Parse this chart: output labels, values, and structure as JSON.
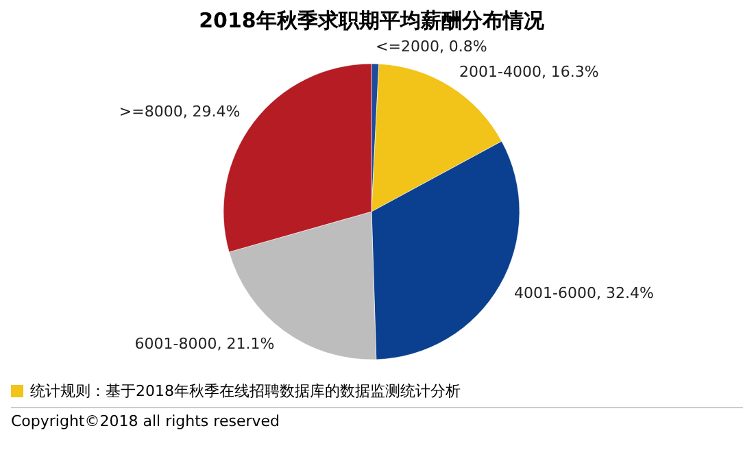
{
  "chart_data": {
    "type": "pie",
    "title": "2018年秋季求职期平均薪酬分布情况",
    "categories": [
      "<=2000",
      "2001-4000",
      "4001-6000",
      "6001-8000",
      ">=8000"
    ],
    "values": [
      0.8,
      16.3,
      32.4,
      21.1,
      29.4
    ],
    "value_labels": [
      "0.8%",
      "16.3%",
      "32.4%",
      "21.1%",
      "29.4%"
    ],
    "colors": [
      "#1d4c9c",
      "#f2c318",
      "#0b3f8f",
      "#bdbdbd",
      "#b51c24"
    ],
    "legend": false,
    "annotations": [
      "统计规则：基于2018年秋季在线招聘数据库的数据监测统计分析",
      "Copyright©2018 all rights reserved"
    ]
  }
}
